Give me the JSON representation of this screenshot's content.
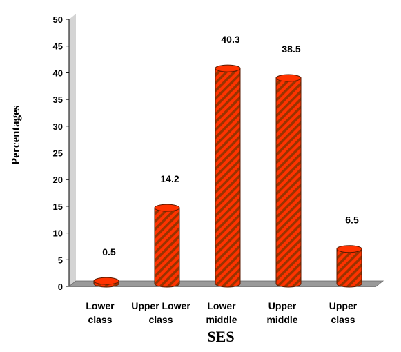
{
  "chart_data": {
    "type": "bar",
    "categories": [
      [
        "Lower",
        "class"
      ],
      [
        "Upper Lower",
        "class"
      ],
      [
        "Lower",
        "middle"
      ],
      [
        "Upper",
        "middle"
      ],
      [
        "Upper",
        "class"
      ]
    ],
    "values": [
      0.5,
      14.2,
      40.3,
      38.5,
      6.5
    ],
    "data_labels": [
      "0.5",
      "14.2",
      "40.3",
      "38.5",
      "6.5"
    ],
    "yticks": [
      "0",
      "5",
      "10",
      "15",
      "20",
      "25",
      "30",
      "35",
      "40",
      "45",
      "50"
    ],
    "ylim": [
      0,
      50
    ],
    "xlabel": "SES",
    "ylabel": "Percentages",
    "grid": false,
    "bar_shape": "cylinder",
    "bar_color": "#ff3300",
    "stripe_color": "#993300",
    "wall_color": "#d4d4d4",
    "floor_color": "#9a9a9a"
  }
}
